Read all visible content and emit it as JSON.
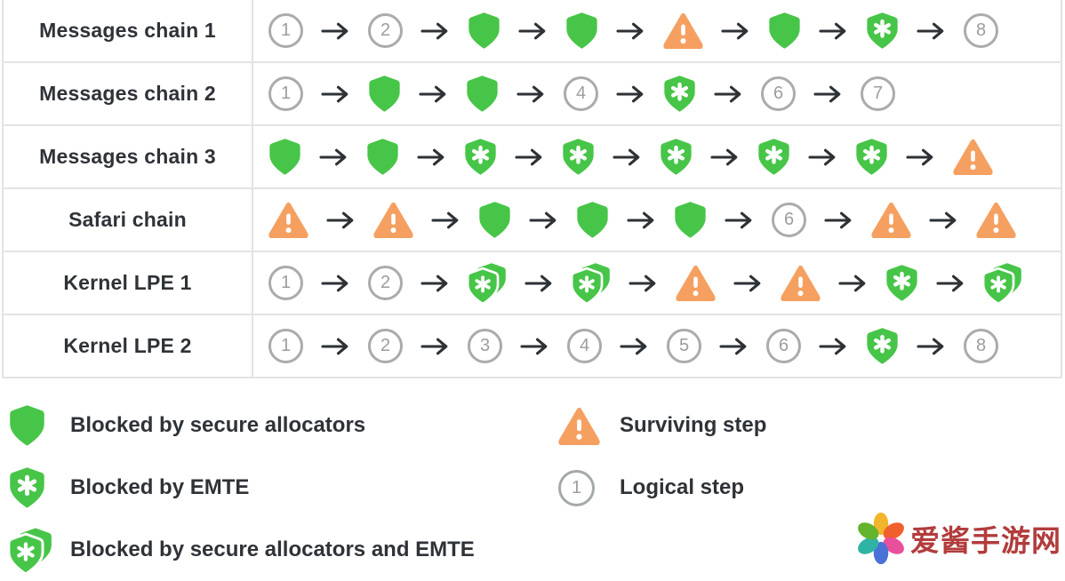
{
  "colors": {
    "green": "#47C548",
    "orange": "#F5A061",
    "circle_gray": "#A9ABAC",
    "arrow": "#2E3236",
    "text": "#2F3338",
    "border": "#E3E3E4",
    "watermark_red": "#B23C3C",
    "petals": [
      "#F2B52B",
      "#F15F2C",
      "#E8509B",
      "#4A71D6",
      "#2FB3A4",
      "#63B32E"
    ]
  },
  "table": {
    "rows": [
      {
        "label": "Messages chain 1",
        "steps": [
          {
            "type": "logical",
            "value": "1"
          },
          {
            "type": "logical",
            "value": "2"
          },
          {
            "type": "allocator"
          },
          {
            "type": "allocator"
          },
          {
            "type": "surviving"
          },
          {
            "type": "allocator"
          },
          {
            "type": "emte"
          },
          {
            "type": "logical",
            "value": "8"
          }
        ]
      },
      {
        "label": "Messages chain 2",
        "steps": [
          {
            "type": "logical",
            "value": "1"
          },
          {
            "type": "allocator"
          },
          {
            "type": "allocator"
          },
          {
            "type": "logical",
            "value": "4"
          },
          {
            "type": "emte"
          },
          {
            "type": "logical",
            "value": "6"
          },
          {
            "type": "logical",
            "value": "7"
          }
        ]
      },
      {
        "label": "Messages chain 3",
        "steps": [
          {
            "type": "allocator"
          },
          {
            "type": "allocator"
          },
          {
            "type": "emte"
          },
          {
            "type": "emte"
          },
          {
            "type": "emte"
          },
          {
            "type": "emte"
          },
          {
            "type": "emte"
          },
          {
            "type": "surviving"
          }
        ]
      },
      {
        "label": "Safari chain",
        "steps": [
          {
            "type": "surviving"
          },
          {
            "type": "surviving"
          },
          {
            "type": "allocator"
          },
          {
            "type": "allocator"
          },
          {
            "type": "allocator"
          },
          {
            "type": "logical",
            "value": "6"
          },
          {
            "type": "surviving"
          },
          {
            "type": "surviving"
          }
        ]
      },
      {
        "label": "Kernel LPE 1",
        "steps": [
          {
            "type": "logical",
            "value": "1"
          },
          {
            "type": "logical",
            "value": "2"
          },
          {
            "type": "both"
          },
          {
            "type": "both"
          },
          {
            "type": "surviving"
          },
          {
            "type": "surviving"
          },
          {
            "type": "emte"
          },
          {
            "type": "both"
          }
        ]
      },
      {
        "label": "Kernel LPE 2",
        "steps": [
          {
            "type": "logical",
            "value": "1"
          },
          {
            "type": "logical",
            "value": "2"
          },
          {
            "type": "logical",
            "value": "3"
          },
          {
            "type": "logical",
            "value": "4"
          },
          {
            "type": "logical",
            "value": "5"
          },
          {
            "type": "logical",
            "value": "6"
          },
          {
            "type": "emte"
          },
          {
            "type": "logical",
            "value": "8"
          }
        ]
      }
    ]
  },
  "legend": {
    "left": [
      {
        "icon": "allocator",
        "label": "Blocked by secure allocators"
      },
      {
        "icon": "emte",
        "label": "Blocked by EMTE"
      },
      {
        "icon": "both",
        "label": "Blocked by secure allocators and EMTE"
      }
    ],
    "right": [
      {
        "icon": "surviving",
        "label": "Surviving step"
      },
      {
        "icon": "logical",
        "value": "1",
        "label": "Logical step"
      }
    ]
  },
  "watermark": {
    "text": "爱酱手游网"
  }
}
